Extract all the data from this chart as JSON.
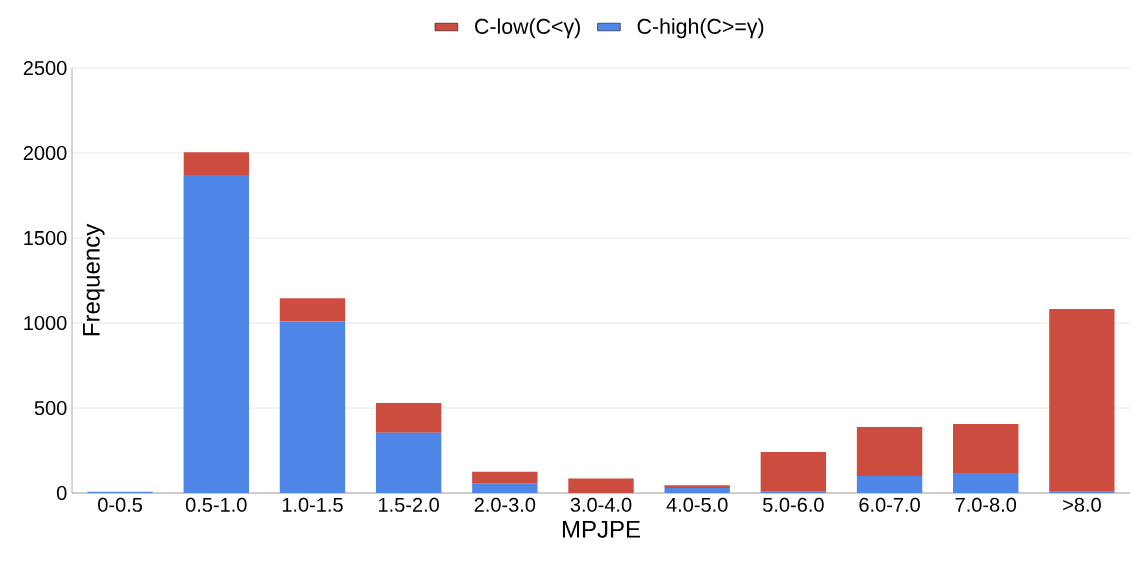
{
  "chart_data": {
    "type": "bar",
    "stacked": true,
    "xlabel": "MPJPE",
    "ylabel": "Frequency",
    "categories": [
      "0-0.5",
      "0.5-1.0",
      "1.0-1.5",
      "1.5-2.0",
      "2.0-3.0",
      "3.0-4.0",
      "4.0-5.0",
      "5.0-6.0",
      "6.0-7.0",
      "7.0-8.0",
      ">8.0"
    ],
    "series": [
      {
        "name": "C-high(C>=γ)",
        "color": "#4e87e8",
        "values": [
          8,
          1870,
          1010,
          355,
          55,
          0,
          29,
          8,
          100,
          118,
          8
        ]
      },
      {
        "name": "C-low(C<γ)",
        "color": "#cc4c3f",
        "values": [
          0,
          135,
          135,
          175,
          70,
          86,
          16,
          233,
          288,
          288,
          1074
        ]
      }
    ],
    "ylim": [
      0,
      2500
    ],
    "yticks": [
      0,
      500,
      1000,
      1500,
      2000,
      2500
    ],
    "grid": "y",
    "legend": "top"
  }
}
